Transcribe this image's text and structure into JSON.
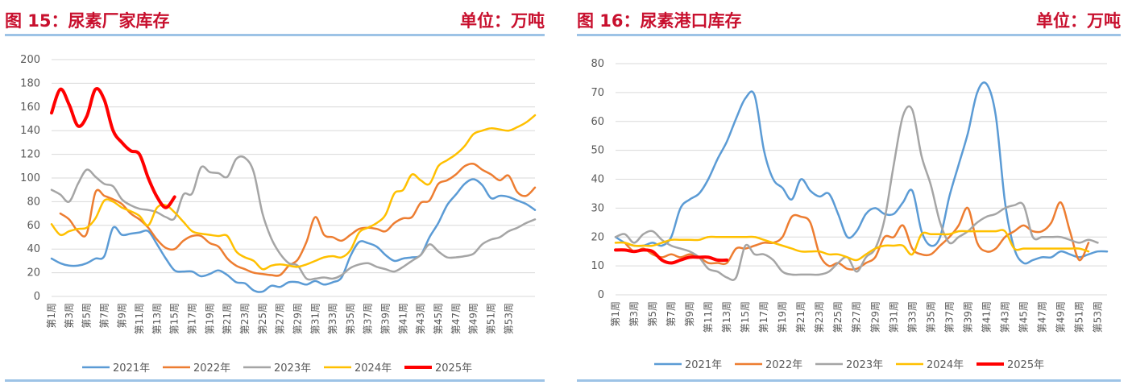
{
  "colors": {
    "title_red": "#c8102e",
    "rule_blue": "#9dc3e6",
    "grid": "#d9d9d9",
    "tick_text": "#595959"
  },
  "left": {
    "title": "图 15：尿素厂家库存",
    "unit": "单位：万吨"
  },
  "right": {
    "title": "图 16：尿素港口库存",
    "unit": "单位：万吨"
  },
  "chart_data": [
    {
      "type": "line",
      "title": "",
      "ylim": [
        0,
        200
      ],
      "yticks": [
        0,
        20,
        40,
        60,
        80,
        100,
        120,
        140,
        160,
        180,
        200
      ],
      "x_labels": [
        "第1周",
        "第3周",
        "第5周",
        "第7周",
        "第9周",
        "第11周",
        "第13周",
        "第15周",
        "第17周",
        "第19周",
        "第21周",
        "第23周",
        "第25周",
        "第27周",
        "第29周",
        "第31周",
        "第33周",
        "第35周",
        "第37周",
        "第39周",
        "第41周",
        "第43周",
        "第45周",
        "第47周",
        "第49周",
        "第51周",
        "第53周"
      ],
      "grid": true,
      "legend_position": "bottom",
      "series": [
        {
          "name": "2021年",
          "color": "#5b9bd5",
          "width": 2.5,
          "values": [
            32,
            28,
            26,
            26,
            28,
            32,
            34,
            58,
            52,
            53,
            54,
            55,
            44,
            32,
            22,
            21,
            21,
            17,
            19,
            22,
            18,
            12,
            11,
            5,
            4,
            9,
            8,
            12,
            12,
            10,
            13,
            10,
            12,
            16,
            34,
            46,
            45,
            42,
            35,
            30,
            32,
            33,
            35,
            50,
            62,
            77,
            86,
            95,
            99,
            94,
            83,
            85,
            84,
            81,
            78,
            73
          ]
        },
        {
          "name": "2022年",
          "color": "#ed7d31",
          "width": 2.5,
          "values": [
            null,
            70,
            65,
            55,
            53,
            88,
            85,
            82,
            78,
            70,
            65,
            58,
            48,
            41,
            40,
            47,
            51,
            51,
            45,
            42,
            32,
            26,
            23,
            20,
            19,
            18,
            18,
            26,
            31,
            46,
            67,
            52,
            50,
            47,
            52,
            57,
            58,
            57,
            55,
            62,
            66,
            67,
            79,
            81,
            95,
            98,
            103,
            110,
            112,
            107,
            103,
            98,
            102,
            88,
            85,
            92
          ]
        },
        {
          "name": "2023年",
          "color": "#a5a5a5",
          "width": 2.5,
          "values": [
            90,
            86,
            80,
            95,
            107,
            101,
            95,
            93,
            82,
            77,
            74,
            73,
            71,
            67,
            66,
            86,
            87,
            109,
            105,
            104,
            101,
            116,
            117,
            105,
            70,
            49,
            36,
            28,
            26,
            15,
            15,
            16,
            15,
            18,
            24,
            27,
            28,
            25,
            23,
            21,
            25,
            30,
            35,
            44,
            38,
            33,
            33,
            34,
            36,
            44,
            48,
            50,
            55,
            58,
            62,
            65
          ]
        },
        {
          "name": "2024年",
          "color": "#ffc000",
          "width": 2.5,
          "values": [
            61,
            52,
            55,
            57,
            58,
            66,
            81,
            80,
            75,
            72,
            68,
            60,
            75,
            77,
            71,
            63,
            55,
            53,
            52,
            51,
            51,
            38,
            33,
            30,
            23,
            26,
            27,
            26,
            25,
            27,
            30,
            33,
            34,
            33,
            39,
            54,
            58,
            62,
            69,
            87,
            90,
            103,
            98,
            95,
            110,
            115,
            120,
            127,
            137,
            140,
            142,
            141,
            140,
            143,
            147,
            153
          ]
        },
        {
          "name": "2025年",
          "color": "#ff0000",
          "width": 4,
          "values": [
            155,
            175,
            162,
            144,
            152,
            175,
            166,
            140,
            130,
            123,
            120,
            100,
            84,
            75,
            84
          ]
        }
      ]
    },
    {
      "type": "line",
      "title": "",
      "ylim": [
        0,
        80
      ],
      "yticks": [
        0,
        10,
        20,
        30,
        40,
        50,
        60,
        70,
        80
      ],
      "x_labels": [
        "第1周",
        "第3周",
        "第5周",
        "第7周",
        "第9周",
        "第11周",
        "第13周",
        "第15周",
        "第17周",
        "第19周",
        "第21周",
        "第23周",
        "第25周",
        "第27周",
        "第29周",
        "第31周",
        "第33周",
        "第35周",
        "第37周",
        "第39周",
        "第41周",
        "第43周",
        "第45周",
        "第47周",
        "第49周",
        "第51周",
        "第53周"
      ],
      "grid": true,
      "legend_position": "bottom",
      "series": [
        {
          "name": "2021年",
          "color": "#5b9bd5",
          "width": 2.5,
          "values": [
            20,
            18,
            17,
            17,
            18,
            17,
            20,
            30,
            33,
            35,
            40,
            47,
            53,
            61,
            68,
            69,
            50,
            40,
            37,
            33,
            40,
            36,
            34,
            35,
            28,
            20,
            22,
            28,
            30,
            28,
            28,
            32,
            36,
            22,
            17,
            20,
            34,
            45,
            56,
            70,
            73,
            62,
            32,
            16,
            11,
            12,
            13,
            13,
            15,
            14,
            13,
            14,
            15,
            15
          ]
        },
        {
          "name": "2022年",
          "color": "#ed7d31",
          "width": 2.5,
          "values": [
            null,
            18,
            15,
            16,
            14,
            13,
            14,
            13,
            14,
            13,
            11,
            11,
            11,
            16,
            16,
            17,
            18,
            18,
            20,
            27,
            27,
            25,
            14,
            10,
            11,
            9,
            9,
            11,
            13,
            20,
            20,
            24,
            16,
            14,
            14,
            17,
            20,
            24,
            30,
            18,
            15,
            16,
            20,
            22,
            24,
            22,
            22,
            25,
            32,
            22,
            12,
            18
          ]
        },
        {
          "name": "2023年",
          "color": "#a5a5a5",
          "width": 2.5,
          "values": [
            20,
            21,
            18,
            21,
            22,
            19,
            17,
            16,
            15,
            13,
            9,
            8,
            6,
            6,
            17,
            14,
            14,
            12,
            8,
            7,
            7,
            7,
            7,
            8,
            11,
            13,
            8,
            13,
            16,
            26,
            45,
            62,
            64,
            48,
            38,
            25,
            18,
            20,
            22,
            25,
            27,
            28,
            30,
            31,
            31,
            20,
            20,
            20,
            20,
            19,
            18,
            19,
            18
          ]
        },
        {
          "name": "2024年",
          "color": "#ffc000",
          "width": 2.5,
          "values": [
            18,
            18,
            17,
            17,
            17,
            18,
            19,
            19,
            19,
            19,
            20,
            20,
            20,
            20,
            20,
            20,
            19,
            18,
            17,
            16,
            15,
            15,
            15,
            14,
            14,
            13,
            12,
            14,
            16,
            17,
            17,
            17,
            14,
            21,
            21,
            21,
            21,
            22,
            22,
            22,
            22,
            22,
            22,
            16,
            16,
            16,
            16,
            16,
            16,
            16,
            16,
            15
          ]
        },
        {
          "name": "2025年",
          "color": "#ff0000",
          "width": 4,
          "values": [
            15.5,
            15.5,
            15,
            15.5,
            15,
            12,
            11,
            12,
            13,
            13,
            13,
            12,
            12
          ]
        }
      ]
    }
  ]
}
